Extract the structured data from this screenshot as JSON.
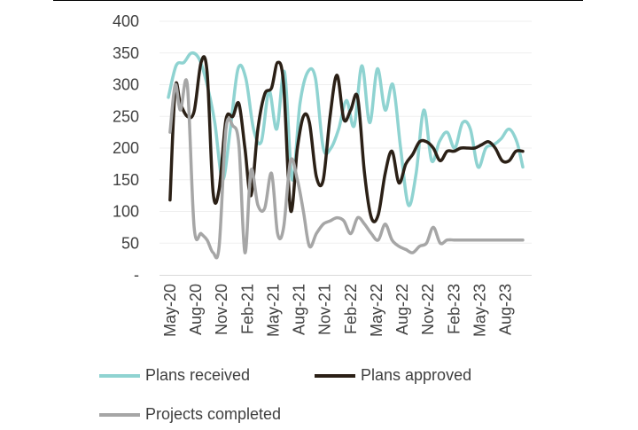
{
  "chart_data": {
    "type": "line",
    "title": "",
    "xlabel": "",
    "ylabel": "",
    "ylim": [
      0,
      400
    ],
    "y_ticks": [
      {
        "value": 0,
        "label": "-"
      },
      {
        "value": 50,
        "label": "50"
      },
      {
        "value": 100,
        "label": "100"
      },
      {
        "value": 150,
        "label": "150"
      },
      {
        "value": 200,
        "label": "200"
      },
      {
        "value": 250,
        "label": "250"
      },
      {
        "value": 300,
        "label": "300"
      },
      {
        "value": 350,
        "label": "350"
      },
      {
        "value": 400,
        "label": "400"
      }
    ],
    "x_ticks": [
      {
        "index": 0,
        "label": "May-20"
      },
      {
        "index": 3,
        "label": "Aug-20"
      },
      {
        "index": 6,
        "label": "Nov-20"
      },
      {
        "index": 9,
        "label": "Feb-21"
      },
      {
        "index": 12,
        "label": "May-21"
      },
      {
        "index": 15,
        "label": "Aug-21"
      },
      {
        "index": 18,
        "label": "Nov-21"
      },
      {
        "index": 21,
        "label": "Feb-22"
      },
      {
        "index": 24,
        "label": "May-22"
      },
      {
        "index": 27,
        "label": "Aug-22"
      },
      {
        "index": 30,
        "label": "Nov-22"
      },
      {
        "index": 33,
        "label": "Feb-23"
      },
      {
        "index": 36,
        "label": "May-23"
      },
      {
        "index": 39,
        "label": "Aug-23"
      }
    ],
    "x_start": -0.2,
    "x_end": 41,
    "grid": "horizontal",
    "legend_position": "bottom",
    "series": [
      {
        "name": "Plans received",
        "color": "#8fd3d1",
        "x": [
          -0.2,
          0.7,
          1.6,
          2.5,
          3.4,
          4.3,
          5.2,
          6.1,
          7,
          7.9,
          8.8,
          9.7,
          10.6,
          11.5,
          12.4,
          13.3,
          14.2,
          15.1,
          16,
          16.9,
          17.8,
          18.7,
          19.6,
          20.5,
          21.4,
          22.3,
          23.2,
          24.1,
          25,
          25.9,
          26.8,
          27.7,
          28.6,
          29.5,
          30.4,
          31.3,
          32.2,
          33.1,
          34,
          34.9,
          35.8,
          36.7,
          37.6,
          38.5,
          39.4,
          40.3,
          41
        ],
        "values": [
          280,
          330,
          335,
          350,
          340,
          300,
          240,
          150,
          230,
          325,
          310,
          230,
          210,
          290,
          230,
          320,
          150,
          270,
          320,
          310,
          200,
          200,
          230,
          275,
          235,
          330,
          240,
          325,
          260,
          300,
          200,
          110,
          160,
          260,
          180,
          210,
          225,
          200,
          240,
          230,
          170,
          200,
          205,
          215,
          230,
          210,
          170
        ]
      },
      {
        "name": "Plans approved",
        "color": "#2b2016",
        "x": [
          0,
          0.6,
          1.2,
          2,
          2.8,
          3.6,
          4.3,
          5,
          5.7,
          6.5,
          7.3,
          8,
          8.7,
          9.4,
          10.2,
          11,
          11.8,
          12.5,
          13.2,
          14,
          14.8,
          15.5,
          16.2,
          17,
          17.8,
          18.6,
          19.4,
          20.2,
          21,
          21.8,
          22.6,
          23.4,
          24.2,
          25,
          25.8,
          26.6,
          27.4,
          28.2,
          29,
          29.8,
          30.6,
          31.4,
          32.2,
          33,
          33.8,
          34.6,
          35.4,
          36.2,
          37,
          37.8,
          38.6,
          39.4,
          40.2,
          41
        ],
        "values": [
          118,
          295,
          270,
          250,
          258,
          335,
          320,
          130,
          135,
          245,
          250,
          270,
          200,
          125,
          230,
          285,
          295,
          335,
          300,
          102,
          200,
          250,
          240,
          155,
          150,
          250,
          315,
          245,
          260,
          280,
          160,
          90,
          95,
          160,
          195,
          145,
          175,
          190,
          210,
          210,
          200,
          180,
          195,
          195,
          200,
          200,
          200,
          205,
          210,
          200,
          180,
          180,
          195,
          195
        ]
      },
      {
        "name": "Projects completed",
        "color": "#a6a6a6",
        "x": [
          0,
          0.6,
          1.2,
          2,
          2.8,
          3.6,
          4.3,
          5,
          5.7,
          6.5,
          7.3,
          8,
          8.7,
          9.4,
          10.2,
          11,
          11.8,
          12.5,
          13.2,
          14,
          14.8,
          15.5,
          16.2,
          17,
          17.8,
          18.6,
          19.4,
          20.2,
          21,
          21.8,
          22.6,
          23.4,
          24.2,
          25,
          25.8,
          26.6,
          27.4,
          28.2,
          29,
          29.8,
          30.6,
          31.4,
          32.2,
          33,
          33.8,
          34.6,
          35.4,
          36.2,
          37,
          37.8,
          38.6,
          39.4,
          40.2,
          41
        ],
        "values": [
          225,
          300,
          260,
          300,
          75,
          65,
          55,
          35,
          45,
          230,
          235,
          205,
          35,
          165,
          110,
          105,
          160,
          65,
          75,
          180,
          150,
          100,
          45,
          65,
          80,
          85,
          90,
          85,
          65,
          90,
          80,
          65,
          55,
          80,
          55,
          45,
          40,
          35,
          45,
          50,
          75,
          50,
          55,
          55,
          55,
          55,
          55,
          55,
          55,
          55,
          55,
          55,
          55,
          55
        ]
      }
    ]
  }
}
